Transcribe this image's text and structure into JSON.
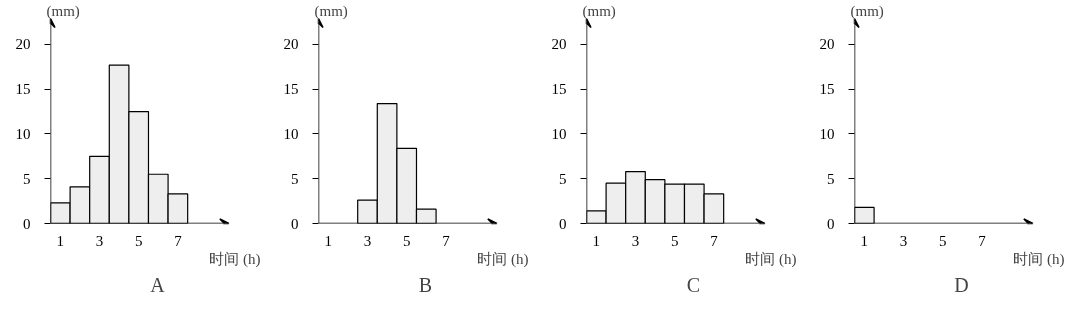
{
  "chart_data": [
    {
      "type": "bar",
      "title": "A",
      "xlabel": "时间 (h)",
      "ylabel": "(mm)",
      "x": [
        1,
        2,
        3,
        4,
        5,
        6,
        7
      ],
      "values": [
        2.3,
        4.1,
        7.5,
        17.7,
        12.5,
        5.5,
        3.3
      ],
      "color": "#eeeeee",
      "xlim": [
        0.5,
        9.6
      ],
      "ylim": [
        0,
        22.9
      ],
      "xticks": [
        1,
        3,
        5,
        7
      ],
      "yticks": [
        0,
        5,
        10,
        15,
        20
      ]
    },
    {
      "type": "bar",
      "title": "B",
      "xlabel": "时间 (h)",
      "ylabel": "(mm)",
      "x": [
        3,
        4,
        5,
        6
      ],
      "values": [
        2.6,
        13.4,
        8.4,
        1.6
      ],
      "color": "#eeeeee",
      "xlim": [
        0.5,
        9.6
      ],
      "ylim": [
        0,
        22.9
      ],
      "xticks": [
        1,
        3,
        5,
        7
      ],
      "yticks": [
        0,
        5,
        10,
        15,
        20
      ]
    },
    {
      "type": "bar",
      "title": "C",
      "xlabel": "时间 (h)",
      "ylabel": "(mm)",
      "x": [
        1,
        2,
        3,
        4,
        5,
        6,
        7
      ],
      "values": [
        1.4,
        4.5,
        5.8,
        4.9,
        4.4,
        4.4,
        3.3
      ],
      "color": "#eeeeee",
      "xlim": [
        0.5,
        9.6
      ],
      "ylim": [
        0,
        22.9
      ],
      "xticks": [
        1,
        3,
        5,
        7
      ],
      "yticks": [
        0,
        5,
        10,
        15,
        20
      ]
    },
    {
      "type": "bar",
      "title": "D",
      "xlabel": "时间 (h)",
      "ylabel": "(mm)",
      "x": [
        1
      ],
      "values": [
        1.8
      ],
      "color": "#eeeeee",
      "xlim": [
        0.5,
        9.6
      ],
      "ylim": [
        0,
        22.9
      ],
      "xticks": [
        1,
        3,
        5,
        7
      ],
      "yticks": [
        0,
        5,
        10,
        15,
        20
      ]
    }
  ]
}
